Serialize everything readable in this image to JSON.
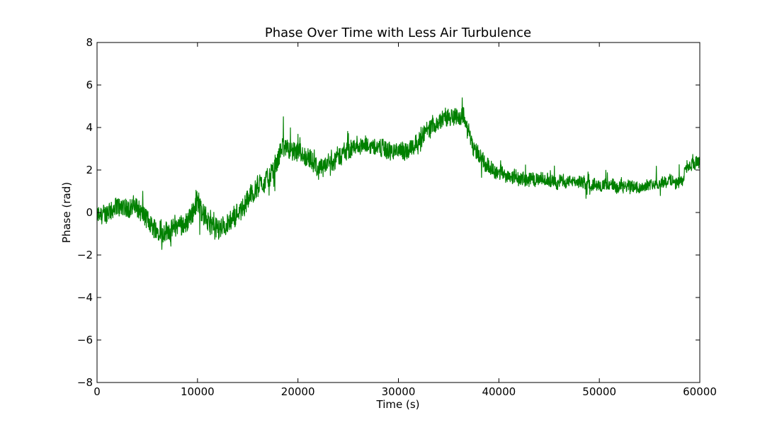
{
  "chart_data": {
    "type": "line",
    "title": "Phase Over Time with Less Air Turbulence",
    "xlabel": "Time (s)",
    "ylabel": "Phase (rad)",
    "xlim": [
      0,
      60000
    ],
    "ylim": [
      -8,
      8
    ],
    "xticks": [
      0,
      10000,
      20000,
      30000,
      40000,
      50000,
      60000
    ],
    "xtick_labels": [
      "0",
      "10000",
      "20000",
      "30000",
      "40000",
      "50000",
      "60000"
    ],
    "yticks": [
      -8,
      -6,
      -4,
      -2,
      0,
      2,
      4,
      6,
      8
    ],
    "ytick_labels": [
      "−8",
      "−6",
      "−4",
      "−2",
      "0",
      "2",
      "4",
      "6",
      "8"
    ],
    "grid": false,
    "legend": "none",
    "series": [
      {
        "color": "#008000",
        "trend": {
          "x": [
            0,
            2000,
            4000,
            5500,
            7000,
            9000,
            10000,
            11000,
            12000,
            13500,
            14500,
            16000,
            17500,
            18500,
            19500,
            21000,
            22000,
            24000,
            25000,
            27000,
            29000,
            30500,
            32000,
            33500,
            35500,
            36500,
            37500,
            38500,
            40000,
            42000,
            45000,
            48000,
            50000,
            52000,
            55000,
            57000,
            58300,
            58600,
            60000
          ],
          "y": [
            -0.2,
            0.2,
            0.3,
            -0.7,
            -0.9,
            -0.4,
            0.5,
            -0.4,
            -0.8,
            -0.3,
            0.3,
            1.2,
            1.8,
            3.2,
            2.8,
            2.5,
            2.0,
            2.6,
            3.0,
            3.2,
            2.9,
            2.8,
            3.4,
            4.2,
            4.6,
            4.5,
            3.0,
            2.3,
            1.8,
            1.6,
            1.5,
            1.4,
            1.3,
            1.2,
            1.3,
            1.5,
            1.4,
            2.2,
            2.3
          ]
        },
        "noise": {
          "x": [
            0,
            10000,
            20000,
            30000,
            38000,
            40000,
            50000,
            58000,
            60000
          ],
          "amp": [
            0.5,
            0.55,
            0.5,
            0.45,
            0.45,
            0.35,
            0.3,
            0.3,
            0.35
          ]
        }
      }
    ]
  }
}
